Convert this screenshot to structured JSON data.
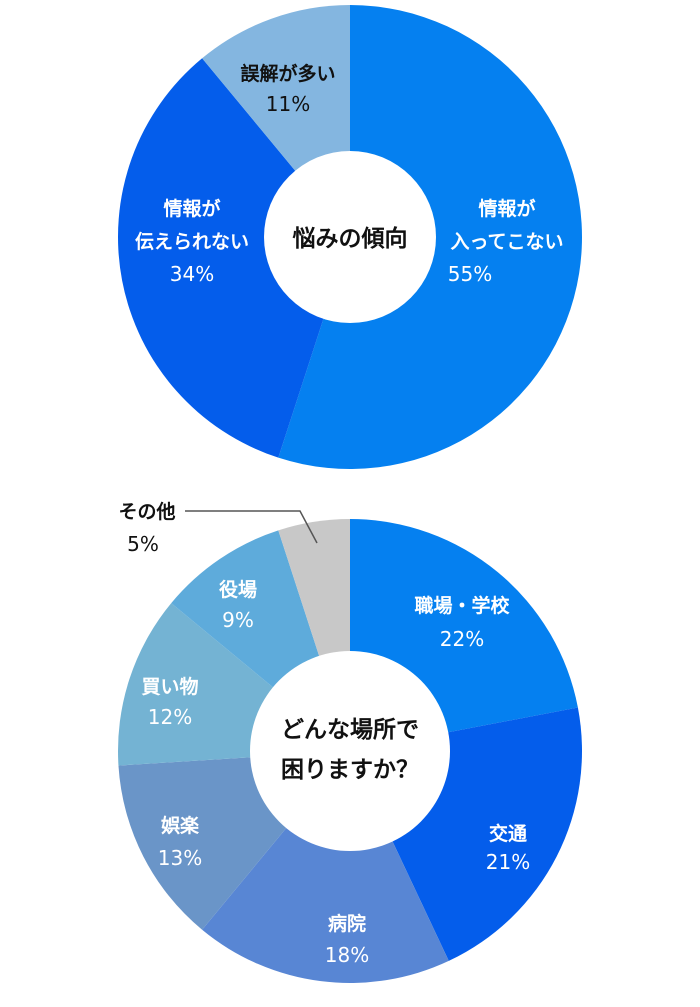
{
  "chart_data": [
    {
      "type": "pie",
      "subtype": "donut",
      "title": "悩みの傾向",
      "categories": [
        "情報が入ってこない",
        "情報が伝えられない",
        "誤解が多い"
      ],
      "values": [
        55,
        34,
        11
      ],
      "unit": "%",
      "colors": [
        "#0580F0",
        "#045DEB",
        "#84B6E0"
      ],
      "labels": [
        {
          "lines": [
            "情報が",
            "入ってこない"
          ],
          "pct": "55%"
        },
        {
          "lines": [
            "情報が",
            "伝えられない"
          ],
          "pct": "34%"
        },
        {
          "lines": [
            "誤解が多い"
          ],
          "pct": "11%"
        }
      ]
    },
    {
      "type": "pie",
      "subtype": "donut",
      "title": "どんな場所で困りますか？",
      "title_lines": [
        "どんな場所で",
        "困りますか？"
      ],
      "categories": [
        "職場・学校",
        "交通",
        "病院",
        "娯楽",
        "買い物",
        "役場",
        "その他"
      ],
      "values": [
        22,
        21,
        18,
        13,
        12,
        9,
        5
      ],
      "unit": "%",
      "colors": [
        "#0580F0",
        "#045DEB",
        "#5886D4",
        "#6A95C8",
        "#74B3D3",
        "#5EABDB",
        "#C8C8C8"
      ],
      "labels": [
        {
          "lines": [
            "職場・学校"
          ],
          "pct": "22%"
        },
        {
          "lines": [
            "交通"
          ],
          "pct": "21%"
        },
        {
          "lines": [
            "病院"
          ],
          "pct": "18%"
        },
        {
          "lines": [
            "娯楽"
          ],
          "pct": "13%"
        },
        {
          "lines": [
            "買い物"
          ],
          "pct": "12%"
        },
        {
          "lines": [
            "役場"
          ],
          "pct": "9%"
        },
        {
          "lines": [
            "その他"
          ],
          "pct": "5%",
          "callout": true
        }
      ]
    }
  ]
}
